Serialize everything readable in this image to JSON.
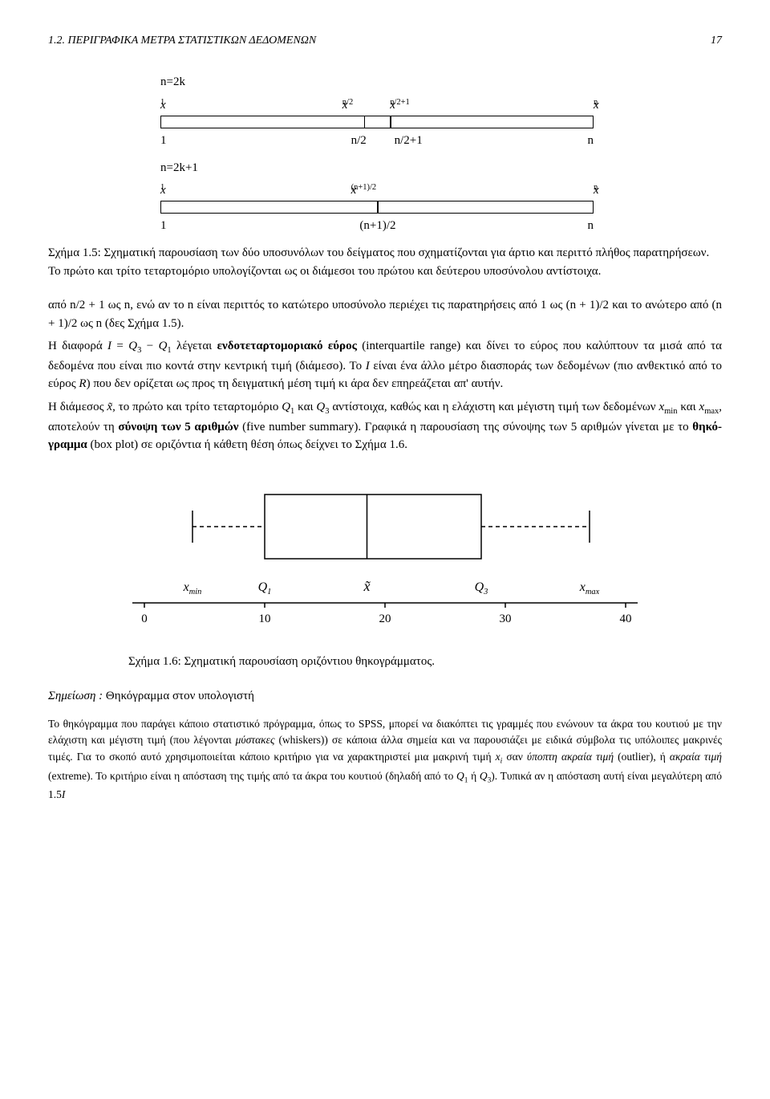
{
  "header": {
    "section": "1.2. ΠΕΡΙΓΡΑΦΙΚΑ ΜΕΤΡΑ ΣΤΑΤΙΣΤΙΚΩΝ ΔΕΔΟΜΕΝΩΝ",
    "page": "17"
  },
  "diagram15": {
    "case1": {
      "title": "n=2k",
      "top": {
        "l": "x",
        "lsub": "1",
        "m1": "x",
        "m1sub": "n/2",
        "m2": "x",
        "m2sub": "n/2+1",
        "r": "x",
        "rsub": "n"
      },
      "bot": {
        "l": "1",
        "m1": "n/2",
        "m2": "n/2+1",
        "r": "n"
      },
      "split1_pct": 47,
      "split2_pct": 53
    },
    "case2": {
      "title": "n=2k+1",
      "top": {
        "l": "x",
        "lsub": "1",
        "m": "x",
        "msub": "(n+1)/2",
        "r": "x",
        "rsub": "n"
      },
      "bot": {
        "l": "1",
        "m": "(n+1)/2",
        "r": "n"
      },
      "split_pct": 50
    }
  },
  "caption15": "Σχήμα 1.5: Σχηματική παρουσίαση των δύο υποσυνόλων του δείγματος που σχηματίζονται για άρτιο και περιττό πλήθος παρατηρήσεων. Το πρώτο και τρίτο τεταρτομόριο υπολογίζονται ως οι διάμεσοι του πρώτου και δεύτερου υποσύνολου αντίστοιχα.",
  "para1": "από n/2 + 1 ως n, ενώ αν το n είναι περιττός το κατώτερο υποσύνολο περιέχει τις παρατηρήσεις από 1 ως (n + 1)/2 και το ανώτερο από (n + 1)/2 ως n (δες Σχήμα 1.5).",
  "para2": "Η διαφορά I = Q₃ − Q₁ λέγεται ενδοτεταρτομοριακό εύρος (interquartile range) και δίνει το εύρος που καλύπτουν τα μισά από τα δεδομένα που είναι πιο κοντά στην κεντρική τιμή (διάμεσο). Το I είναι ένα άλλο μέτρο διασποράς των δεδομένων (πιο ανθεκτικό από το εύρος R) που δεν ορίζεται ως προς τη δειγματική μέση τιμή κι άρα δεν επηρεάζεται απ' αυτήν.",
  "para3": "Η διάμεσος x̃, το πρώτο και τρίτο τεταρτομόριο Q₁ και Q₃ αντίστοιχα, καθώς και η ελάχιστη και μέγιστη τιμή των δεδομένων xₘᵢₙ και xₘₐₓ, αποτελούν τη σύνοψη των 5 αριθμών (five number summary). Γραφικά η παρουσίαση της σύνοψης των 5 αριθμών γίνεται με το θηκό­γραμμα (box plot) σε οριζόντια ή κάθετη θέση όπως δείχνει το Σχήμα 1.6.",
  "boxplot": {
    "xmin": 0,
    "xmax": 40,
    "ticks": [
      0,
      10,
      20,
      30,
      40
    ],
    "whisker_min": 4,
    "q1": 10,
    "median": 18.5,
    "q3": 28,
    "whisker_max": 37,
    "labels": {
      "xmin": "x",
      "xmin_sub": "min",
      "q1": "Q",
      "q1_sub": "1",
      "median": "x̃",
      "q3": "Q",
      "q3_sub": "3",
      "xmax": "x",
      "xmax_sub": "max"
    },
    "stroke": "#000000",
    "axis_color": "#000000"
  },
  "caption16": "Σχήμα 1.6: Σχηματική παρουσίαση οριζόντιου θηκογράμματος.",
  "note_heading_a": "Σημείωση :",
  "note_heading_b": "Θηκόγραμμα στον υπολογιστή",
  "note_body": "Το θηκόγραμμα που παράγει κάποιο στατιστικό πρόγραμμα, όπως το SPSS, μπορεί να διακόπτει τις γραμμές που ενώνουν τα άκρα του κουτιού με την ελάχιστη και μέγιστη τιμή (που λέγονται μύστακες (whiskers)) σε κάποια άλλα σημεία και να παρουσιάζει με ειδικά σύμβολα τις υπόλοιπες μακρινές τιμές. Για το σκοπό αυτό χρησιμοποιείται κάποιο κριτήριο για να χαρακτηριστεί μια μακρινή τιμή xᵢ σαν ύποπτη ακραία τιμή (outlier), ή ακραία τιμή (extreme). Το κριτήριο είναι η απόσταση της τιμής από τα άκρα του κουτιού (δηλαδή από το Q₁ ή Q₃). Τυπικά αν η απόσταση αυτή είναι μεγαλύτερη από 1.5I"
}
